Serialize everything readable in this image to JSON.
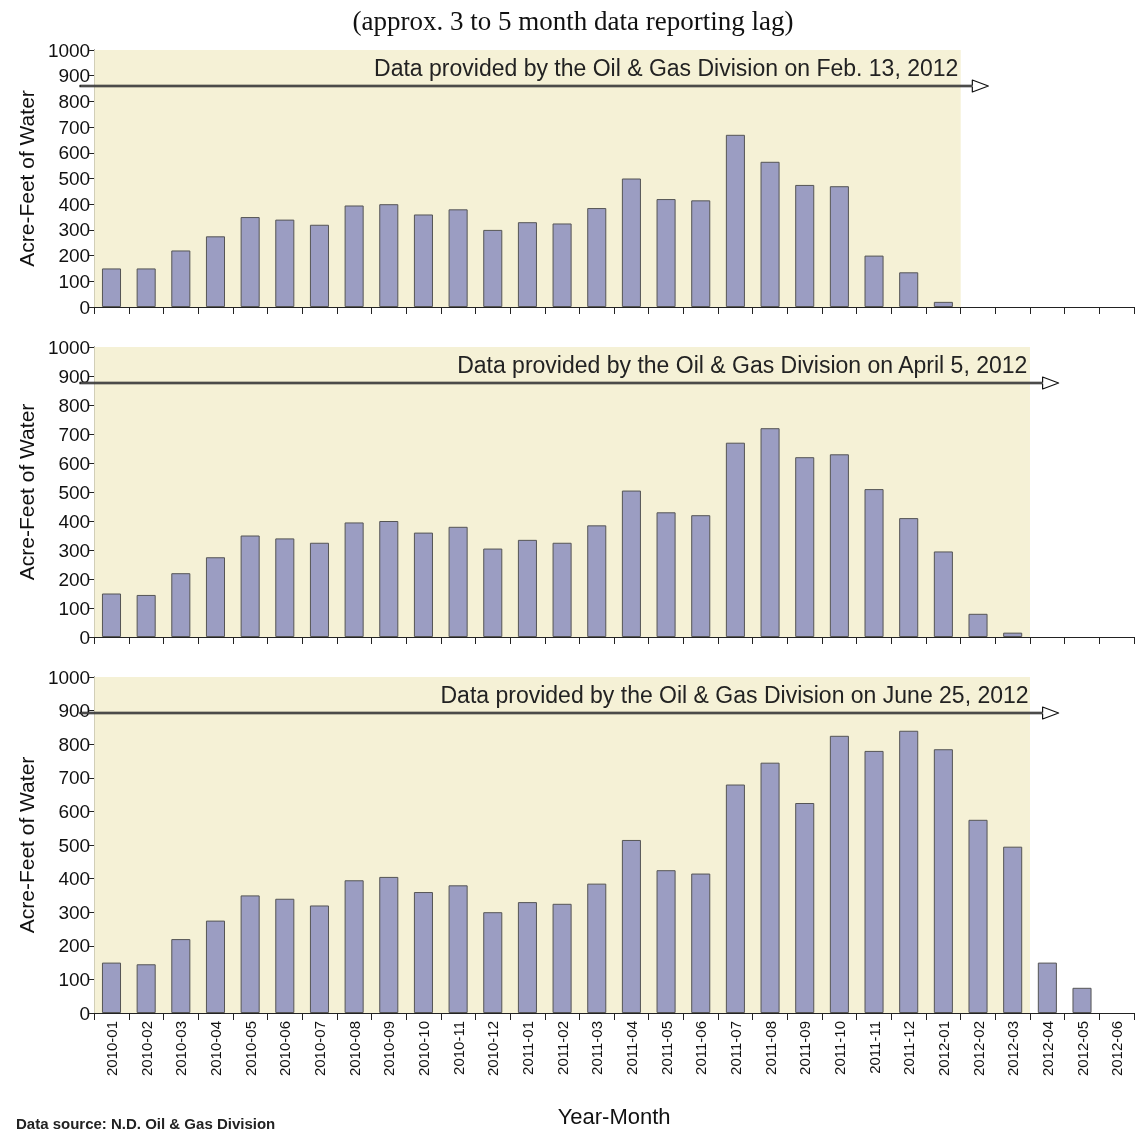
{
  "chart_data": [
    {
      "type": "bar",
      "title": "(approx. 3 to 5 month data reporting lag)",
      "ylabel": "Acre-Feet of Water",
      "categories": [
        "2010-01",
        "2010-02",
        "2010-03",
        "2010-04",
        "2010-05",
        "2010-06",
        "2010-07",
        "2010-08",
        "2010-09",
        "2010-10",
        "2010-11",
        "2010-12",
        "2011-01",
        "2011-02",
        "2011-03",
        "2011-04",
        "2011-05",
        "2011-06",
        "2011-07",
        "2011-08",
        "2011-09",
        "2011-10",
        "2011-11",
        "2011-12",
        "2012-01",
        "2012-02",
        "2012-03",
        "2012-04",
        "2012-05",
        "2012-06"
      ],
      "values": [
        150,
        150,
        220,
        275,
        350,
        340,
        320,
        395,
        400,
        360,
        380,
        300,
        330,
        325,
        385,
        500,
        420,
        415,
        670,
        565,
        475,
        470,
        200,
        135,
        20,
        null,
        null,
        null,
        null,
        null
      ],
      "color": "#9b9dc2",
      "ylim": [
        0,
        1000
      ],
      "yticks": [
        0,
        100,
        200,
        300,
        400,
        500,
        600,
        700,
        800,
        900,
        1000
      ],
      "grid": false,
      "tick_labels": "y",
      "bands": [
        {
          "axis": "x",
          "from": "2010-01",
          "to": "2012-01",
          "color": "#f5f1d6"
        }
      ],
      "annotations": [
        "Data provided by the Oil & Gas Division on Feb. 13, 2012"
      ]
    },
    {
      "type": "bar",
      "ylabel": "Acre-Feet of Water",
      "categories": [
        "2010-01",
        "2010-02",
        "2010-03",
        "2010-04",
        "2010-05",
        "2010-06",
        "2010-07",
        "2010-08",
        "2010-09",
        "2010-10",
        "2010-11",
        "2010-12",
        "2011-01",
        "2011-02",
        "2011-03",
        "2011-04",
        "2011-05",
        "2011-06",
        "2011-07",
        "2011-08",
        "2011-09",
        "2011-10",
        "2011-11",
        "2011-12",
        "2012-01",
        "2012-02",
        "2012-03",
        "2012-04",
        "2012-05",
        "2012-06"
      ],
      "values": [
        150,
        145,
        220,
        275,
        350,
        340,
        325,
        395,
        400,
        360,
        380,
        305,
        335,
        325,
        385,
        505,
        430,
        420,
        670,
        720,
        620,
        630,
        510,
        410,
        295,
        80,
        15,
        null,
        null,
        null
      ],
      "color": "#9b9dc2",
      "ylim": [
        0,
        1000
      ],
      "yticks": [
        0,
        100,
        200,
        300,
        400,
        500,
        600,
        700,
        800,
        900,
        1000
      ],
      "grid": false,
      "tick_labels": "y",
      "bands": [
        {
          "axis": "x",
          "from": "2010-01",
          "to": "2012-03",
          "color": "#f5f1d6"
        }
      ],
      "annotations": [
        "Data provided by the Oil & Gas Division on April 5, 2012"
      ]
    },
    {
      "type": "bar",
      "ylabel": "Acre-Feet of Water",
      "xlabel": "Year-Month",
      "categories": [
        "2010-01",
        "2010-02",
        "2010-03",
        "2010-04",
        "2010-05",
        "2010-06",
        "2010-07",
        "2010-08",
        "2010-09",
        "2010-10",
        "2010-11",
        "2010-12",
        "2011-01",
        "2011-02",
        "2011-03",
        "2011-04",
        "2011-05",
        "2011-06",
        "2011-07",
        "2011-08",
        "2011-09",
        "2011-10",
        "2011-11",
        "2011-12",
        "2012-01",
        "2012-02",
        "2012-03",
        "2012-04",
        "2012-05",
        "2012-06"
      ],
      "values": [
        150,
        145,
        220,
        275,
        350,
        340,
        320,
        395,
        405,
        360,
        380,
        300,
        330,
        325,
        385,
        515,
        425,
        415,
        680,
        745,
        625,
        825,
        780,
        840,
        785,
        575,
        495,
        150,
        75,
        null
      ],
      "color": "#9b9dc2",
      "ylim": [
        0,
        1000
      ],
      "yticks": [
        0,
        100,
        200,
        300,
        400,
        500,
        600,
        700,
        800,
        900,
        1000
      ],
      "grid": false,
      "bands": [
        {
          "axis": "x",
          "from": "2010-01",
          "to": "2012-03",
          "color": "#f5f1d6"
        }
      ],
      "annotations": [
        "Data provided by the Oil & Gas Division on June 25, 2012",
        "Data source: N.D. Oil & Gas Division"
      ]
    }
  ]
}
